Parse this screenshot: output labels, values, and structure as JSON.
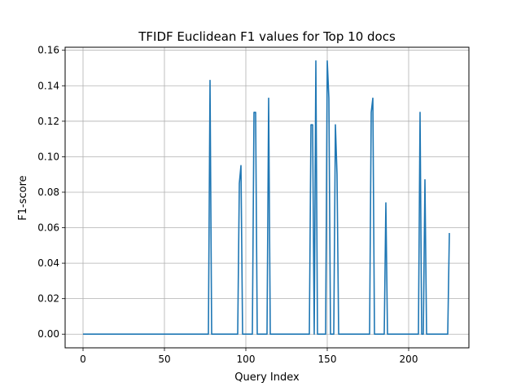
{
  "chart_data": {
    "type": "line",
    "title": "TFIDF Euclidean F1 values for Top 10 docs",
    "xlabel": "Query Index",
    "ylabel": "F1-score",
    "xlim": [
      -11,
      237
    ],
    "ylim": [
      -0.0077,
      0.1617
    ],
    "xticks": [
      0,
      50,
      100,
      150,
      200
    ],
    "yticks": [
      0.0,
      0.02,
      0.04,
      0.06,
      0.08,
      0.1,
      0.12,
      0.14,
      0.16
    ],
    "xtick_labels": [
      "0",
      "50",
      "100",
      "150",
      "200"
    ],
    "ytick_labels": [
      "0.00",
      "0.02",
      "0.04",
      "0.06",
      "0.08",
      "0.10",
      "0.12",
      "0.14",
      "0.16"
    ],
    "grid": true,
    "line_color": "#1f77b4",
    "series": [
      {
        "x": [
          0,
          77,
          78,
          79,
          95,
          96,
          97,
          98,
          104,
          105,
          106,
          107,
          113,
          114,
          115,
          139,
          140,
          141,
          142,
          143,
          144,
          149,
          150,
          151,
          152,
          154,
          155,
          156,
          157,
          176,
          177,
          178,
          179,
          185,
          186,
          187,
          206,
          207,
          208,
          209,
          210,
          211,
          224,
          225
        ],
        "y": [
          0,
          0,
          0.143,
          0,
          0,
          0.085,
          0.095,
          0,
          0,
          0.125,
          0.125,
          0,
          0,
          0.133,
          0,
          0,
          0.118,
          0.118,
          0,
          0.154,
          0,
          0,
          0.154,
          0.133,
          0,
          0,
          0.118,
          0.09,
          0,
          0,
          0.125,
          0.133,
          0,
          0,
          0.074,
          0,
          0,
          0.125,
          0,
          0,
          0.087,
          0,
          0,
          0.057
        ]
      }
    ]
  }
}
